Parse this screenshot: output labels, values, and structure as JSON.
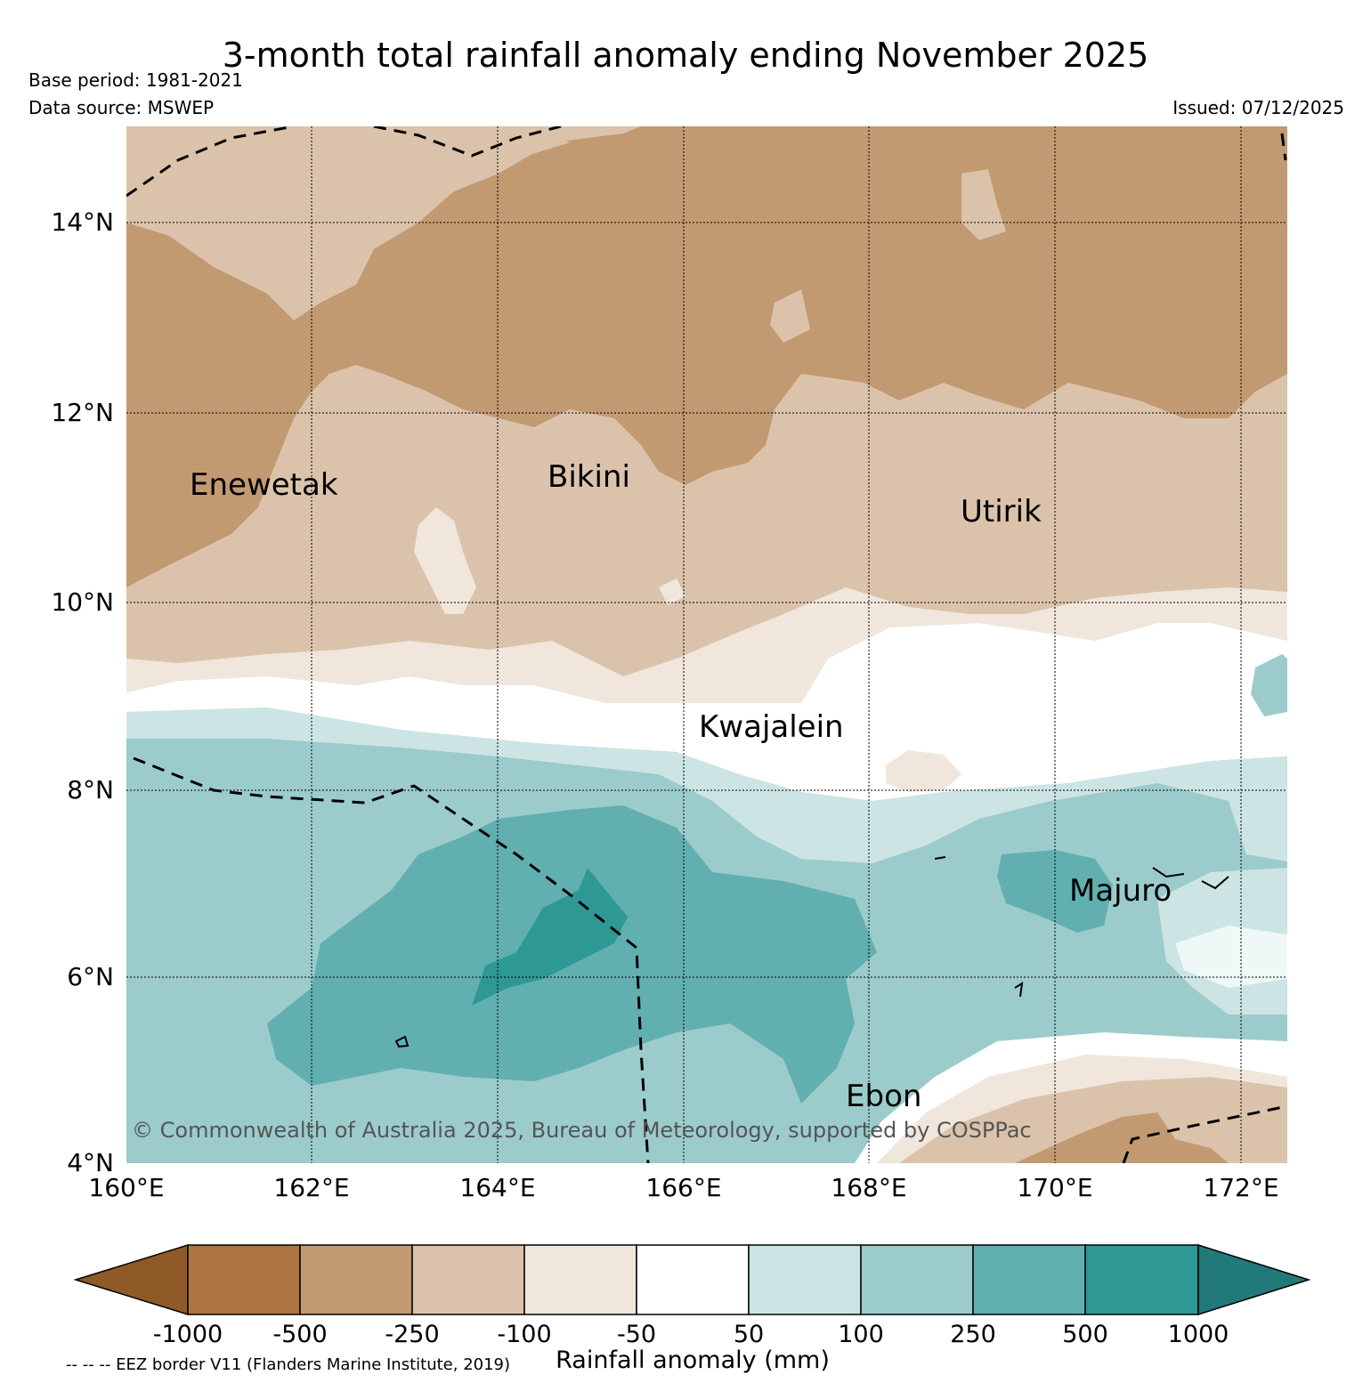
{
  "title": "3-month total rainfall anomaly ending November 2025",
  "base_period": "Base period: 1981-2021",
  "data_source": "Data source: MSWEP",
  "issued": "Issued: 07/12/2025",
  "map": {
    "lat_labels": [
      "14°N",
      "12°N",
      "10°N",
      "8°N",
      "6°N",
      "4°N"
    ],
    "lon_labels": [
      "160°E",
      "162°E",
      "164°E",
      "166°E",
      "168°E",
      "170°E",
      "172°E"
    ],
    "places": [
      "Enewetak",
      "Bikini",
      "Utirik",
      "Kwajalein",
      "Majuro",
      "Ebon"
    ],
    "copyright": "© Commonwealth of Australia 2025, Bureau of Meteorology, supported by COSPPac",
    "eez_note": "-- -- -- EEZ border V11 (Flanders Marine Institute, 2019)"
  },
  "colorbar": {
    "label": "Rainfall anomaly (mm)",
    "ticks": [
      "-1000",
      "-500",
      "-250",
      "-100",
      "-50",
      "50",
      "100",
      "250",
      "500",
      "1000"
    ],
    "colors": [
      "#8f5a28",
      "#ac753f",
      "#c29a72",
      "#dbc3ab",
      "#f0e6dc",
      "#ffffff",
      "#cde4e4",
      "#9ccbcc",
      "#62afb0",
      "#2e9895",
      "#227979"
    ]
  }
}
